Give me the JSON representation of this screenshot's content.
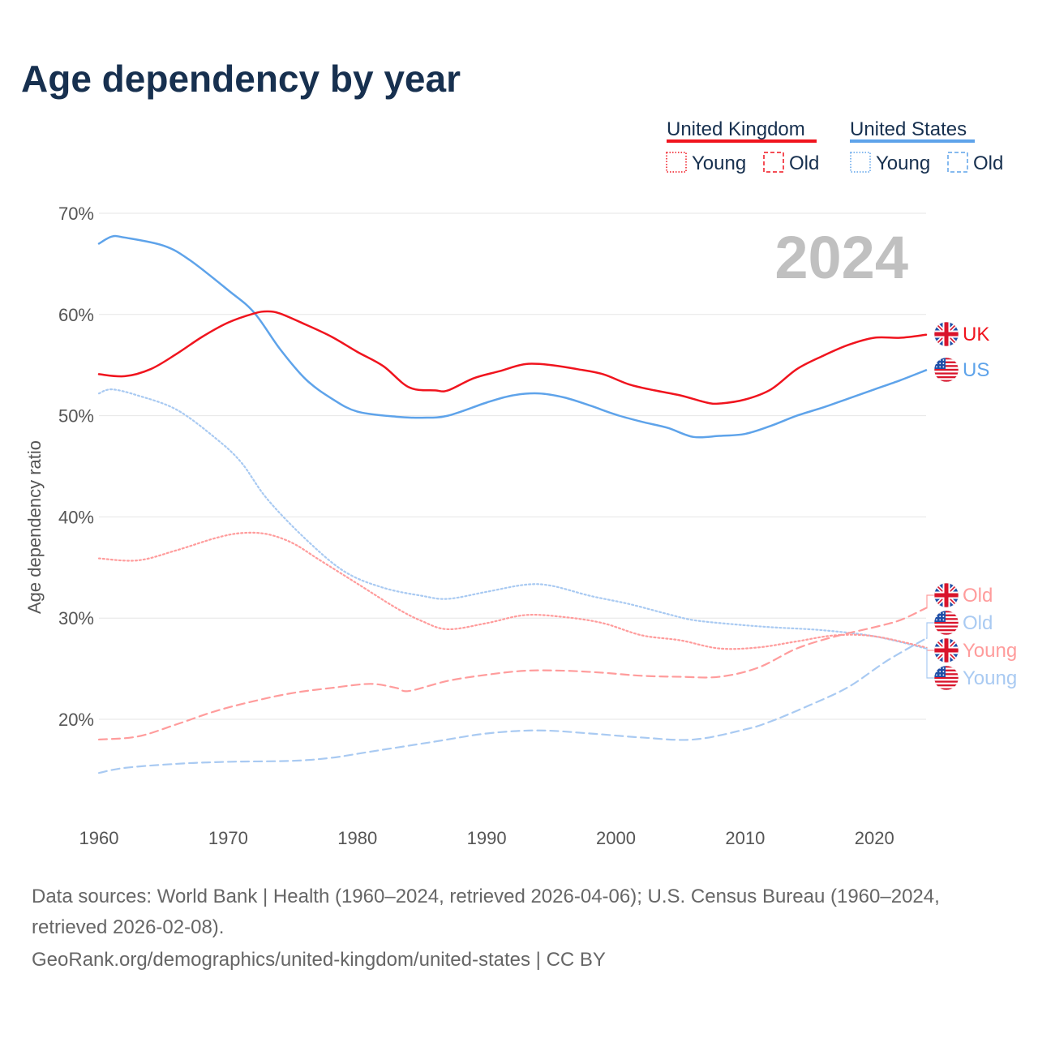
{
  "chart_data": {
    "type": "line",
    "title": "Age dependency by year",
    "year_watermark": "2024",
    "xlabel": "",
    "ylabel": "Age dependency ratio",
    "xlim": [
      1960,
      2024
    ],
    "ylim": [
      12,
      70
    ],
    "x_ticks": [
      "1960",
      "1970",
      "1980",
      "1990",
      "2000",
      "2010",
      "2020"
    ],
    "x_tick_values": [
      1960,
      1970,
      1980,
      1990,
      2000,
      2010,
      2020
    ],
    "y_ticks": [
      "20%",
      "30%",
      "40%",
      "50%",
      "60%",
      "70%"
    ],
    "y_tick_values": [
      20,
      30,
      40,
      50,
      60,
      70
    ],
    "grid": true,
    "legend": {
      "position": "top-right",
      "groups": [
        {
          "name": "United Kingdom",
          "color": "#f0141e",
          "items": [
            "Young",
            "Old"
          ]
        },
        {
          "name": "United States",
          "color": "#5ea3ea",
          "items": [
            "Young",
            "Old"
          ]
        }
      ]
    },
    "series": [
      {
        "id": "uk-total",
        "name": "United Kingdom",
        "end_label": "UK",
        "color": "#f0141e",
        "style": "solid",
        "flag": "uk",
        "points": [
          [
            1960,
            54.1
          ],
          [
            1962,
            53.9
          ],
          [
            1964,
            54.6
          ],
          [
            1966,
            56.1
          ],
          [
            1968,
            57.8
          ],
          [
            1970,
            59.2
          ],
          [
            1972,
            60.1
          ],
          [
            1973,
            60.3
          ],
          [
            1974,
            60.1
          ],
          [
            1976,
            59.0
          ],
          [
            1978,
            57.8
          ],
          [
            1980,
            56.3
          ],
          [
            1982,
            54.9
          ],
          [
            1984,
            52.8
          ],
          [
            1986,
            52.5
          ],
          [
            1987,
            52.5
          ],
          [
            1989,
            53.7
          ],
          [
            1991,
            54.4
          ],
          [
            1993,
            55.1
          ],
          [
            1995,
            55.0
          ],
          [
            1997,
            54.6
          ],
          [
            1999,
            54.1
          ],
          [
            2001,
            53.1
          ],
          [
            2003,
            52.5
          ],
          [
            2005,
            52.0
          ],
          [
            2007,
            51.3
          ],
          [
            2008,
            51.2
          ],
          [
            2010,
            51.6
          ],
          [
            2012,
            52.6
          ],
          [
            2014,
            54.6
          ],
          [
            2016,
            55.9
          ],
          [
            2018,
            57.0
          ],
          [
            2020,
            57.7
          ],
          [
            2022,
            57.7
          ],
          [
            2024,
            58.0
          ]
        ]
      },
      {
        "id": "us-total",
        "name": "United States",
        "end_label": "US",
        "color": "#5ea3ea",
        "style": "solid",
        "flag": "us",
        "points": [
          [
            1960,
            67.0
          ],
          [
            1961,
            67.7
          ],
          [
            1962,
            67.6
          ],
          [
            1965,
            66.8
          ],
          [
            1967,
            65.4
          ],
          [
            1970,
            62.4
          ],
          [
            1972,
            60.2
          ],
          [
            1974,
            56.6
          ],
          [
            1976,
            53.6
          ],
          [
            1978,
            51.7
          ],
          [
            1980,
            50.4
          ],
          [
            1983,
            49.9
          ],
          [
            1985,
            49.8
          ],
          [
            1987,
            50.0
          ],
          [
            1990,
            51.3
          ],
          [
            1992,
            52.0
          ],
          [
            1994,
            52.2
          ],
          [
            1996,
            51.8
          ],
          [
            1998,
            51.0
          ],
          [
            2000,
            50.1
          ],
          [
            2002,
            49.4
          ],
          [
            2004,
            48.8
          ],
          [
            2006,
            47.9
          ],
          [
            2008,
            48.0
          ],
          [
            2010,
            48.2
          ],
          [
            2012,
            49.0
          ],
          [
            2014,
            50.0
          ],
          [
            2016,
            50.8
          ],
          [
            2018,
            51.7
          ],
          [
            2020,
            52.6
          ],
          [
            2022,
            53.5
          ],
          [
            2024,
            54.5
          ]
        ]
      },
      {
        "id": "uk-young",
        "name": "United Kingdom Young",
        "end_label": "Young",
        "color": "#ff9c9c",
        "style": "dotted",
        "flag": "uk",
        "points": [
          [
            1960,
            35.9
          ],
          [
            1963,
            35.7
          ],
          [
            1966,
            36.7
          ],
          [
            1969,
            37.9
          ],
          [
            1971,
            38.4
          ],
          [
            1973,
            38.3
          ],
          [
            1975,
            37.4
          ],
          [
            1977,
            35.8
          ],
          [
            1980,
            33.4
          ],
          [
            1983,
            31.0
          ],
          [
            1985,
            29.7
          ],
          [
            1987,
            28.9
          ],
          [
            1990,
            29.5
          ],
          [
            1993,
            30.3
          ],
          [
            1996,
            30.1
          ],
          [
            1999,
            29.5
          ],
          [
            2002,
            28.3
          ],
          [
            2005,
            27.8
          ],
          [
            2008,
            27.0
          ],
          [
            2011,
            27.1
          ],
          [
            2014,
            27.7
          ],
          [
            2017,
            28.3
          ],
          [
            2020,
            28.2
          ],
          [
            2024,
            27.1
          ]
        ]
      },
      {
        "id": "uk-old",
        "name": "United Kingdom Old",
        "end_label": "Old",
        "color": "#ff9c9c",
        "style": "dashed",
        "flag": "uk",
        "points": [
          [
            1960,
            18.0
          ],
          [
            1963,
            18.3
          ],
          [
            1966,
            19.5
          ],
          [
            1969,
            20.8
          ],
          [
            1972,
            21.8
          ],
          [
            1975,
            22.6
          ],
          [
            1978,
            23.1
          ],
          [
            1981,
            23.5
          ],
          [
            1983,
            23.1
          ],
          [
            1984,
            22.8
          ],
          [
            1987,
            23.8
          ],
          [
            1990,
            24.4
          ],
          [
            1993,
            24.8
          ],
          [
            1996,
            24.8
          ],
          [
            1999,
            24.6
          ],
          [
            2002,
            24.3
          ],
          [
            2005,
            24.2
          ],
          [
            2008,
            24.2
          ],
          [
            2011,
            25.1
          ],
          [
            2014,
            27.0
          ],
          [
            2017,
            28.2
          ],
          [
            2020,
            29.1
          ],
          [
            2022,
            29.8
          ],
          [
            2024,
            31.0
          ]
        ]
      },
      {
        "id": "us-young",
        "name": "United States Young",
        "end_label": "Young",
        "color": "#a9caf2",
        "style": "dotted",
        "flag": "us",
        "points": [
          [
            1960,
            52.2
          ],
          [
            1961,
            52.6
          ],
          [
            1963,
            52.0
          ],
          [
            1966,
            50.6
          ],
          [
            1969,
            47.8
          ],
          [
            1971,
            45.4
          ],
          [
            1973,
            41.8
          ],
          [
            1976,
            37.8
          ],
          [
            1979,
            34.6
          ],
          [
            1982,
            33.0
          ],
          [
            1985,
            32.2
          ],
          [
            1987,
            31.9
          ],
          [
            1990,
            32.6
          ],
          [
            1993,
            33.3
          ],
          [
            1995,
            33.2
          ],
          [
            1998,
            32.2
          ],
          [
            2001,
            31.4
          ],
          [
            2004,
            30.4
          ],
          [
            2006,
            29.8
          ],
          [
            2009,
            29.4
          ],
          [
            2012,
            29.1
          ],
          [
            2016,
            28.8
          ],
          [
            2020,
            28.2
          ],
          [
            2024,
            27.0
          ]
        ]
      },
      {
        "id": "us-old",
        "name": "United States Old",
        "end_label": "Old",
        "color": "#a9caf2",
        "style": "dashed",
        "flag": "us",
        "points": [
          [
            1960,
            14.7
          ],
          [
            1962,
            15.2
          ],
          [
            1966,
            15.6
          ],
          [
            1970,
            15.8
          ],
          [
            1975,
            15.9
          ],
          [
            1978,
            16.2
          ],
          [
            1981,
            16.8
          ],
          [
            1986,
            17.8
          ],
          [
            1990,
            18.6
          ],
          [
            1994,
            18.9
          ],
          [
            1998,
            18.6
          ],
          [
            2002,
            18.2
          ],
          [
            2006,
            18.0
          ],
          [
            2010,
            19.0
          ],
          [
            2012,
            19.8
          ],
          [
            2015,
            21.4
          ],
          [
            2018,
            23.2
          ],
          [
            2021,
            25.8
          ],
          [
            2024,
            28.0
          ]
        ]
      }
    ],
    "end_label_order": [
      "uk-total",
      "us-total",
      "uk-old",
      "us-old",
      "uk-young",
      "us-young"
    ]
  },
  "footer": {
    "line1": "Data sources: World Bank | Health (1960–2024, retrieved 2026-04-06); U.S. Census Bureau (1960–2024,",
    "line2": "retrieved 2026-02-08).",
    "line3": "GeoRank.org/demographics/united-kingdom/united-states | CC BY"
  }
}
